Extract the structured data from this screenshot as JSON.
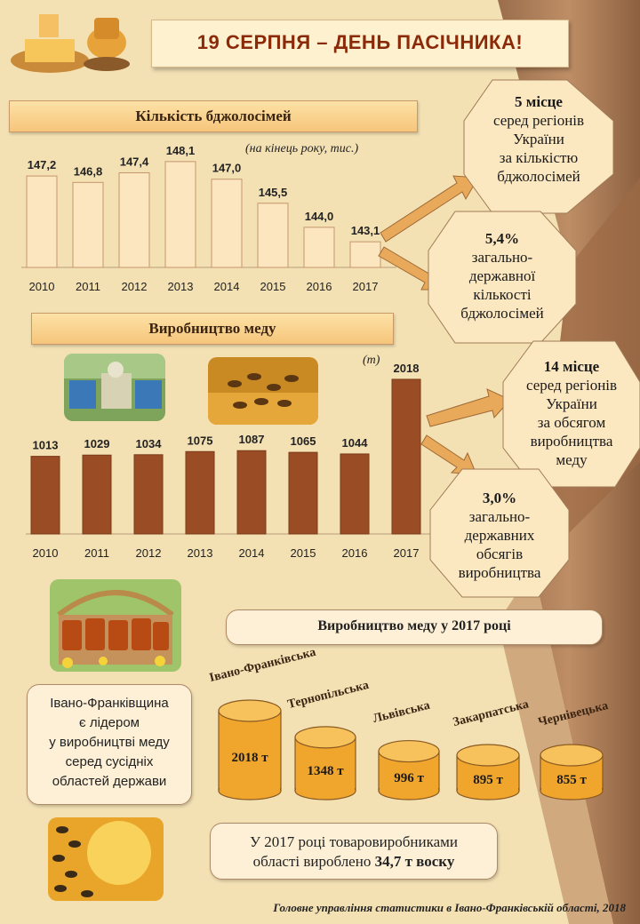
{
  "title": "19 СЕРПНЯ – ДЕНЬ ПАСІЧНИКА!",
  "colonies": {
    "heading": "Кількість бджолосімей",
    "unit_note": "(на кінець року, тис.)"
  },
  "honey": {
    "heading": "Виробництво меду",
    "unit_note": "(т)"
  },
  "chart_data": [
    {
      "type": "bar",
      "title": "Кількість бджолосімей",
      "note": "(на кінець року, тис.)",
      "categories": [
        "2010",
        "2011",
        "2012",
        "2013",
        "2014",
        "2015",
        "2016",
        "2017"
      ],
      "values": [
        147.2,
        146.8,
        147.4,
        148.1,
        147.0,
        145.5,
        144.0,
        143.1
      ],
      "labels": [
        "147,2",
        "146,8",
        "147,4",
        "148,1",
        "147,0",
        "145,5",
        "144,0",
        "143,1"
      ],
      "ylim": [
        141.5,
        149.2
      ],
      "bar_color": "#fbe1b5"
    },
    {
      "type": "bar",
      "title": "Виробництво меду",
      "note": "(т)",
      "categories": [
        "2010",
        "2011",
        "2012",
        "2013",
        "2014",
        "2015",
        "2016",
        "2017"
      ],
      "values": [
        1013,
        1029,
        1034,
        1075,
        1087,
        1065,
        1044,
        2018
      ],
      "labels": [
        "1013",
        "1029",
        "1034",
        "1075",
        "1087",
        "1065",
        "1044",
        "2018"
      ],
      "ylim": [
        0,
        2330
      ],
      "bar_color": "#9a4d24"
    },
    {
      "type": "bar",
      "title": "Виробництво меду у 2017 році",
      "categories": [
        "Івано-Франківська",
        "Тернопільська",
        "Львівська",
        "Закарпатська",
        "Чернівецька"
      ],
      "values": [
        2018,
        1348,
        996,
        895,
        855
      ],
      "labels": [
        "2018 т",
        "1348 т",
        "996 т",
        "895 т",
        "855 т"
      ]
    }
  ],
  "callouts": {
    "colonies_rank": {
      "bold": "5 місце",
      "lines": [
        "серед регіонів",
        "України",
        "за кількістю",
        "бджолосімей"
      ]
    },
    "colonies_share": {
      "bold": "5,4%",
      "lines": [
        "загально-",
        "державної",
        "кількості",
        "бджолосімей"
      ]
    },
    "honey_rank": {
      "bold": "14 місце",
      "lines": [
        "серед регіонів",
        "України",
        "за обсягом",
        "виробництва",
        "меду"
      ]
    },
    "honey_share": {
      "bold": "3,0%",
      "lines": [
        "загально-",
        "державних",
        "обсягів",
        "виробництва"
      ]
    }
  },
  "region_chart": {
    "heading": "Виробництво меду у 2017 році"
  },
  "leader_text": [
    "Івано-Франківщина",
    "є лідером",
    "у виробництві меду",
    "серед сусідніх",
    "областей держави"
  ],
  "wax": {
    "line1": "У 2017 році товаровиробниками",
    "line2_prefix": "області вироблено ",
    "line2_bold": "34,7 т воску"
  },
  "source": "Головне управління статистики в Івано-Франківській області, 2018",
  "colors": {
    "title": "#8b2a08",
    "barrel": "#f0a52c",
    "honey_bar": "#9a4d24",
    "octagon": "#fbe7c0"
  }
}
